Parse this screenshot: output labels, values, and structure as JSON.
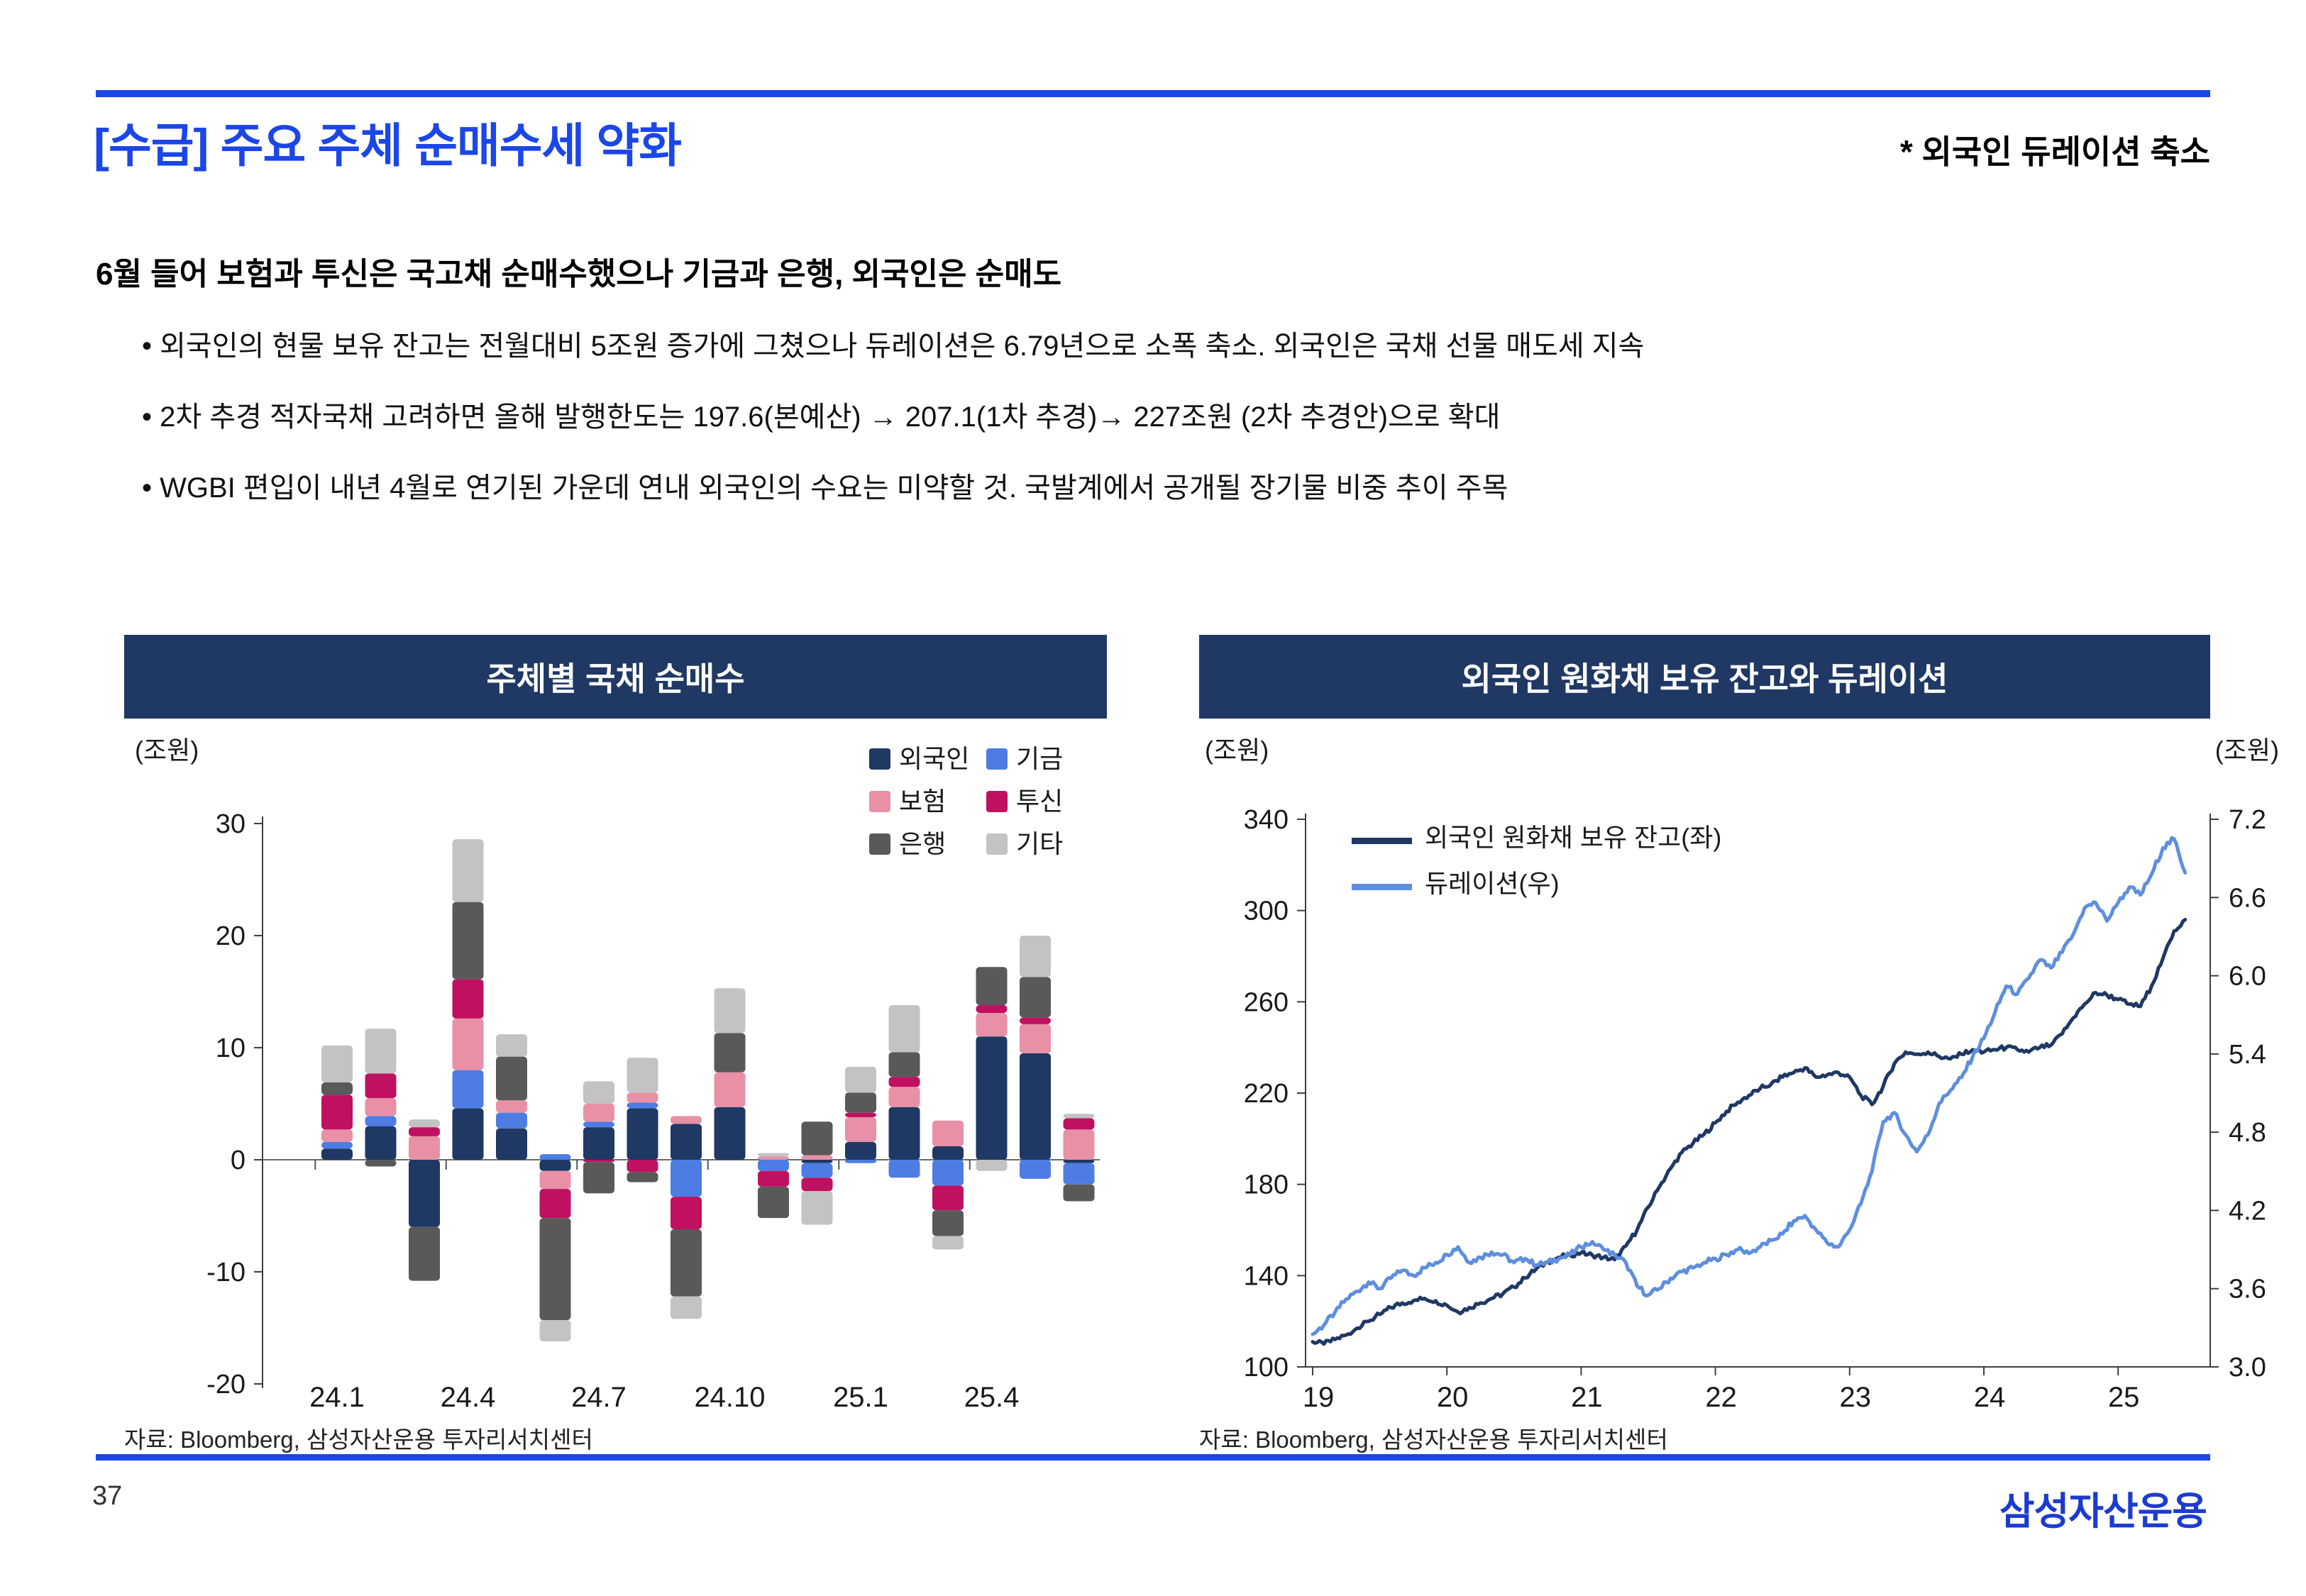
{
  "page": {
    "title": "[수급] 주요 주체 순매수세 약화",
    "annotation": "* 외국인 듀레이션 축소",
    "subtitle": "6월 들어 보험과 투신은 국고채 순매수했으나 기금과 은행, 외국인은 순매도",
    "bullets": [
      "외국인의 현물 보유 잔고는 전월대비 5조원 증가에 그쳤으나 듀레이션은 6.79년으로 소폭 축소. 외국인은 국채 선물 매도세 지속",
      "2차 추경 적자국채 고려하면 올해 발행한도는 197.6(본예산) → 207.1(1차 추경)→ 227조원 (2차 추경안)으로 확대",
      "WGBI 편입이 내년 4월로 연기된 가운데 연내 외국인의 수요는 미약할 것. 국발계에서 공개될 장기물 비중 추이 주목"
    ],
    "page_number": "37",
    "logo": "삼성자산운용"
  },
  "colors": {
    "accent_blue": "#1b46e8",
    "header_navy": "#1f3864",
    "logo_blue": "#1c3bd0",
    "axis_gray": "#3f3f3f"
  },
  "left_chart": {
    "title": "주체별 국채 순매수",
    "unit_label": "(조원)",
    "source": "자료: Bloomberg, 삼성자산운용 투자리서치센터"
  },
  "right_chart": {
    "title": "외국인 원화채 보유 잔고와 듀레이션",
    "unit_label_left": "(조원)",
    "unit_label_right": "(조원)",
    "source": "자료: Bloomberg, 삼성자산운용 투자리서치센터"
  },
  "chart_data": [
    {
      "type": "bar",
      "stacked": true,
      "title": "주체별 국채 순매수",
      "ylabel": "(조원)",
      "ylim": [
        -20,
        30
      ],
      "yticks": [
        30,
        20,
        10,
        0,
        -10,
        -20
      ],
      "grid": false,
      "legend_position": "top-right",
      "categories": [
        "24.1",
        "24.2",
        "24.3",
        "24.4",
        "24.5",
        "24.6",
        "24.7",
        "24.8",
        "24.9",
        "24.10",
        "24.11",
        "24.12",
        "25.1",
        "25.2",
        "25.3",
        "25.4",
        "25.5",
        "25.6"
      ],
      "xticks_shown": [
        "24.1",
        "24.4",
        "24.7",
        "24.10",
        "25.1",
        "25.4"
      ],
      "series": [
        {
          "name": "외국인",
          "color": "#1f3864",
          "values": [
            1.0,
            3.0,
            -6.0,
            4.6,
            2.8,
            -1.0,
            2.9,
            4.6,
            3.2,
            4.7,
            0.0,
            -0.3,
            1.6,
            4.7,
            1.2,
            11.0,
            9.5,
            -0.3
          ]
        },
        {
          "name": "기금",
          "color": "#4d7ce3",
          "values": [
            0.6,
            0.9,
            0.0,
            3.4,
            1.4,
            0.5,
            0.5,
            0.5,
            -3.3,
            0.0,
            -1.0,
            -1.3,
            -0.3,
            -1.6,
            -2.3,
            0.0,
            -1.7,
            -1.9
          ]
        },
        {
          "name": "보험",
          "color": "#e890a6",
          "values": [
            1.1,
            1.6,
            2.1,
            4.6,
            1.1,
            -1.6,
            1.6,
            0.9,
            0.7,
            3.1,
            0.3,
            0.4,
            2.2,
            1.8,
            2.3,
            2.1,
            2.6,
            2.7
          ]
        },
        {
          "name": "투신",
          "color": "#bf1160",
          "values": [
            3.1,
            2.2,
            0.8,
            3.5,
            0.0,
            -2.6,
            -0.2,
            -1.1,
            -2.9,
            0.0,
            -1.4,
            -1.2,
            0.4,
            0.9,
            -2.2,
            0.7,
            0.6,
            1.0
          ]
        },
        {
          "name": "은행",
          "color": "#595959",
          "values": [
            1.1,
            -0.6,
            -4.8,
            6.9,
            3.9,
            -9.1,
            -2.8,
            -0.9,
            -6.0,
            3.5,
            -2.8,
            3.0,
            1.8,
            2.2,
            -2.3,
            3.4,
            3.6,
            -1.5
          ]
        },
        {
          "name": "기타",
          "color": "#c3c3c3",
          "values": [
            3.3,
            4.0,
            0.7,
            5.6,
            2.0,
            -1.9,
            2.0,
            3.1,
            -2.0,
            4.0,
            0.3,
            -3.0,
            2.3,
            4.2,
            -1.2,
            -1.0,
            3.7,
            0.4
          ]
        }
      ]
    },
    {
      "type": "line",
      "title": "외국인 원화채 보유 잔고와 듀레이션",
      "ylabel_left": "(조원)",
      "ylabel_right": "(조원)",
      "ylim_left": [
        100,
        340
      ],
      "yticks_left": [
        340,
        300,
        260,
        220,
        180,
        140,
        100
      ],
      "ylim_right": [
        3.0,
        7.2
      ],
      "yticks_right": [
        7.2,
        6.6,
        6.0,
        5.4,
        4.8,
        4.2,
        3.6,
        3.0
      ],
      "x_start_year": 2019,
      "x_step_months": 1,
      "xlim": [
        19,
        25.75
      ],
      "xticks": [
        "19",
        "20",
        "21",
        "22",
        "23",
        "24",
        "25"
      ],
      "grid": false,
      "legend_position": "top-left",
      "series": [
        {
          "name": "외국인 원화채 보유 잔고(좌)",
          "axis": "left",
          "color": "#1f3864",
          "values": [
            111,
            110,
            112,
            114,
            117,
            120,
            123,
            126,
            128,
            129,
            130,
            129,
            127,
            124,
            126,
            128,
            130,
            132,
            135,
            139,
            143,
            146,
            148,
            149,
            150,
            149,
            148,
            147,
            153,
            160,
            170,
            179,
            187,
            194,
            198,
            202,
            207,
            212,
            216,
            219,
            222,
            224,
            227,
            229,
            231,
            227,
            228,
            229,
            227,
            219,
            215,
            223,
            233,
            238,
            237,
            238,
            236,
            235,
            237,
            239,
            238,
            239,
            240,
            239,
            238,
            240,
            241,
            246,
            253,
            259,
            264,
            263,
            261,
            259,
            258,
            267,
            279,
            291,
            296
          ]
        },
        {
          "name": "듀레이션(우)",
          "axis": "right",
          "color": "#5e8ede",
          "values": [
            3.25,
            3.32,
            3.42,
            3.52,
            3.58,
            3.65,
            3.6,
            3.68,
            3.74,
            3.7,
            3.76,
            3.8,
            3.86,
            3.92,
            3.8,
            3.84,
            3.88,
            3.86,
            3.8,
            3.83,
            3.78,
            3.8,
            3.83,
            3.86,
            3.92,
            3.96,
            3.9,
            3.86,
            3.8,
            3.62,
            3.55,
            3.6,
            3.68,
            3.73,
            3.76,
            3.8,
            3.83,
            3.86,
            3.9,
            3.87,
            3.92,
            3.97,
            4.02,
            4.12,
            4.16,
            4.05,
            3.95,
            3.92,
            4.05,
            4.25,
            4.5,
            4.88,
            4.95,
            4.78,
            4.65,
            4.78,
            5.02,
            5.12,
            5.22,
            5.38,
            5.52,
            5.72,
            5.92,
            5.86,
            5.98,
            6.12,
            6.06,
            6.18,
            6.32,
            6.52,
            6.56,
            6.42,
            6.56,
            6.68,
            6.62,
            6.78,
            6.98,
            7.05,
            6.79
          ]
        }
      ]
    }
  ]
}
